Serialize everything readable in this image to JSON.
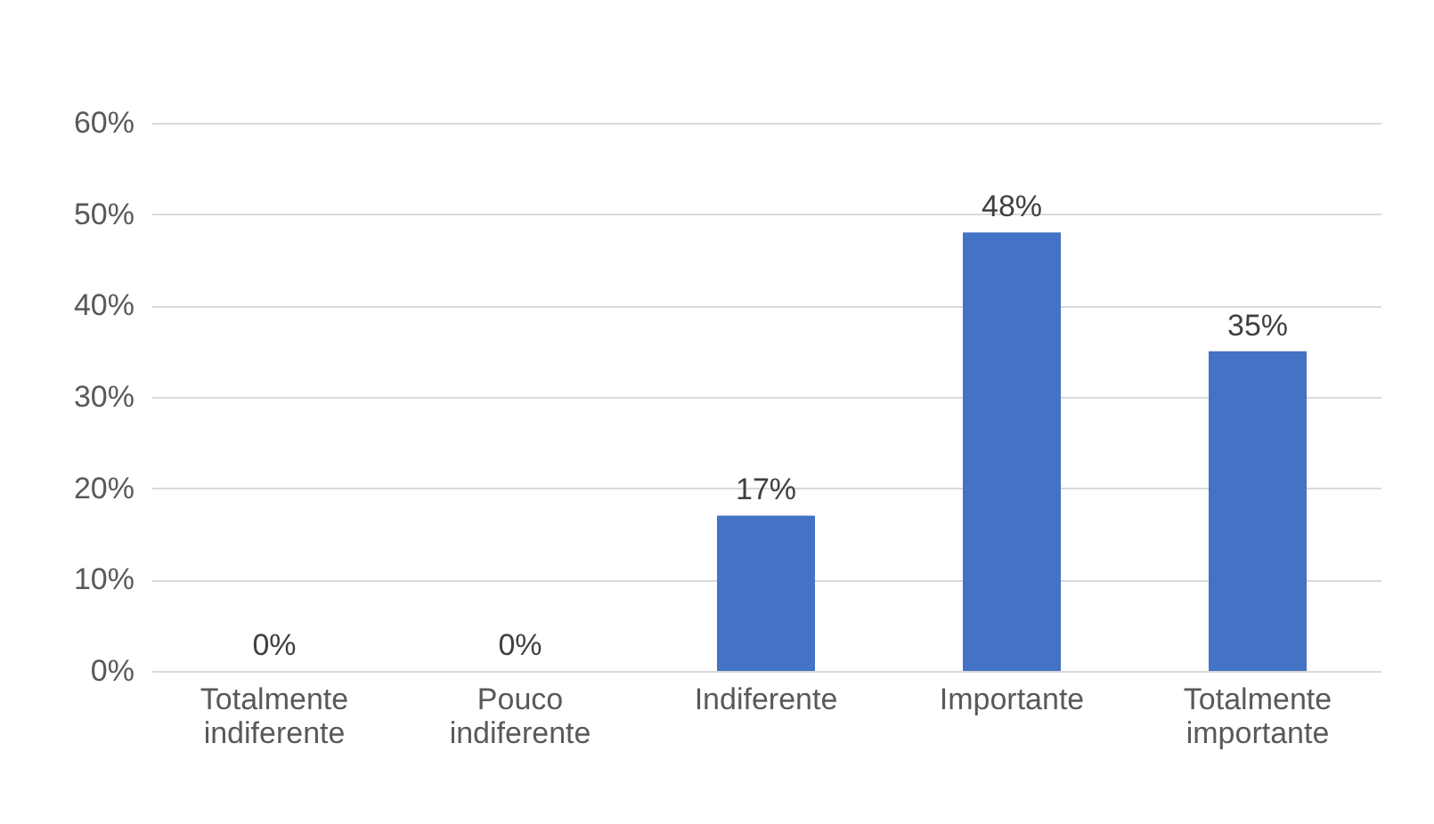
{
  "chart_data": {
    "type": "bar",
    "categories": [
      "Totalmente indiferente",
      "Pouco indiferente",
      "Indiferente",
      "Importante",
      "Totalmente importante"
    ],
    "values": [
      0,
      0,
      17,
      48,
      35
    ],
    "value_labels": [
      "0%",
      "0%",
      "17%",
      "48%",
      "35%"
    ],
    "color": "#4472c4",
    "ylim": [
      0,
      60
    ],
    "yticks": [
      {
        "value": 0,
        "label": "0%"
      },
      {
        "value": 10,
        "label": "10%"
      },
      {
        "value": 20,
        "label": "20%"
      },
      {
        "value": 30,
        "label": "30%"
      },
      {
        "value": 40,
        "label": "40%"
      },
      {
        "value": 50,
        "label": "50%"
      },
      {
        "value": 60,
        "label": "60%"
      }
    ],
    "grid": "y"
  }
}
